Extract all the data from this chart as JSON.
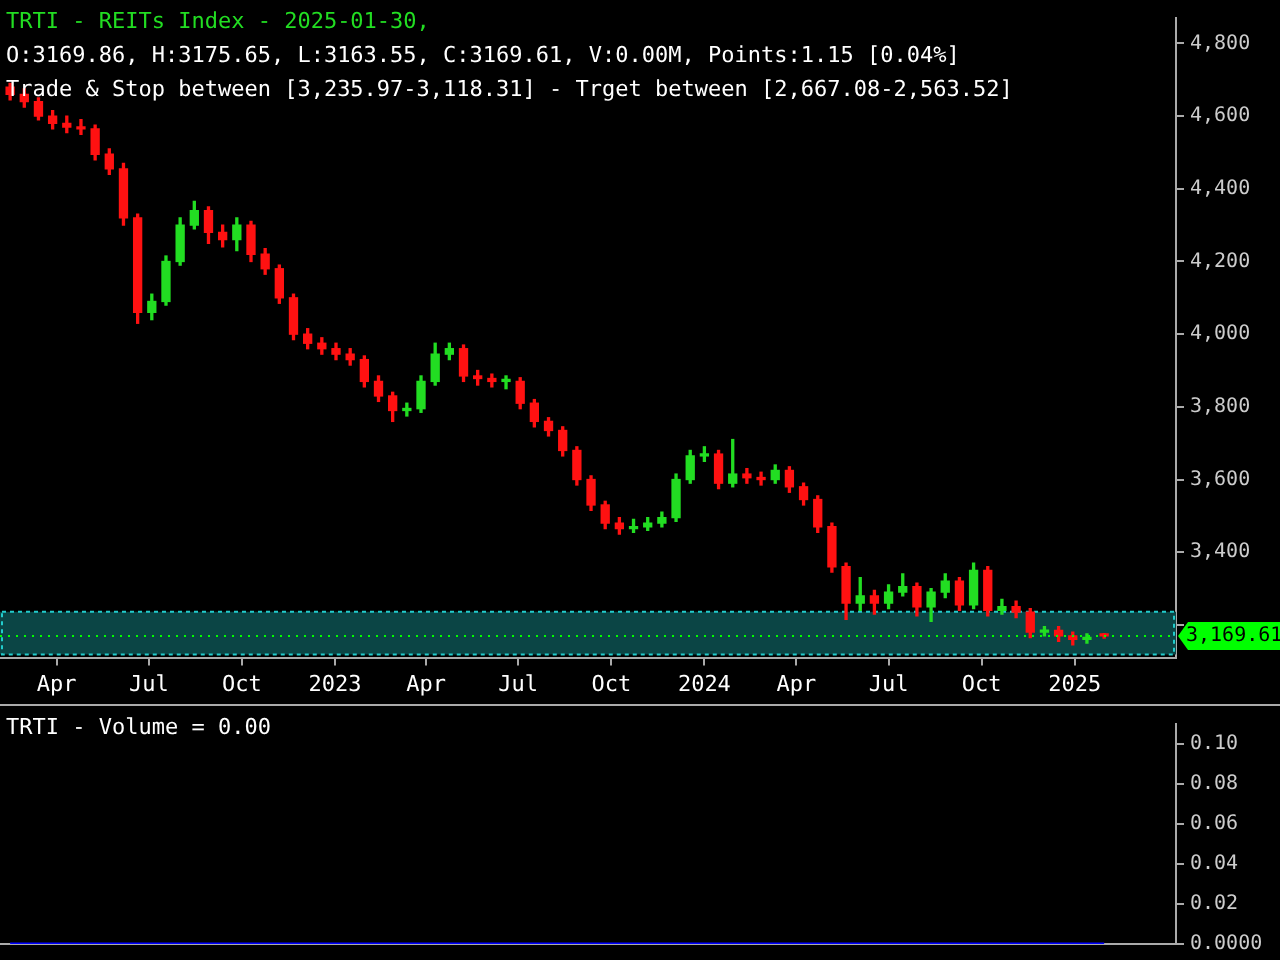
{
  "chart_data": [
    {
      "type": "candlestick",
      "title": "TRTI - REITs Index - 2025-01-30,",
      "subtitle": "O:3169.86, H:3175.65, L:3163.55, C:3169.61, V:0.00M, Points:1.15 [0.04%]",
      "annotations": [
        "Trade & Stop between [3,235.97-3,118.31] - Trget between [2,667.08-2,563.52]"
      ],
      "x": [
        "2022-02-14",
        "2022-02-28",
        "2022-03-14",
        "2022-03-28",
        "2022-04-11",
        "2022-04-25",
        "2022-05-09",
        "2022-05-23",
        "2022-06-06",
        "2022-06-20",
        "2022-07-04",
        "2022-07-18",
        "2022-08-01",
        "2022-08-15",
        "2022-08-29",
        "2022-09-12",
        "2022-09-26",
        "2022-10-10",
        "2022-10-24",
        "2022-11-07",
        "2022-11-21",
        "2022-12-05",
        "2022-12-19",
        "2023-01-02",
        "2023-01-16",
        "2023-01-30",
        "2023-02-13",
        "2023-02-27",
        "2023-03-13",
        "2023-03-27",
        "2023-04-10",
        "2023-04-24",
        "2023-05-08",
        "2023-05-22",
        "2023-06-05",
        "2023-06-19",
        "2023-07-03",
        "2023-07-17",
        "2023-07-31",
        "2023-08-14",
        "2023-08-28",
        "2023-09-11",
        "2023-09-25",
        "2023-10-09",
        "2023-10-23",
        "2023-11-06",
        "2023-11-20",
        "2023-12-04",
        "2023-12-18",
        "2024-01-01",
        "2024-01-15",
        "2024-01-29",
        "2024-02-12",
        "2024-02-26",
        "2024-03-11",
        "2024-03-25",
        "2024-04-08",
        "2024-04-22",
        "2024-05-06",
        "2024-05-20",
        "2024-06-03",
        "2024-06-17",
        "2024-07-01",
        "2024-07-15",
        "2024-07-29",
        "2024-08-12",
        "2024-08-26",
        "2024-09-09",
        "2024-09-23",
        "2024-10-07",
        "2024-10-21",
        "2024-11-04",
        "2024-11-18",
        "2024-12-02",
        "2024-12-16",
        "2024-12-30",
        "2025-01-13",
        "2025-01-30"
      ],
      "ohlc": [
        [
          4680,
          4690,
          4645,
          4660
        ],
        [
          4660,
          4675,
          4625,
          4640
        ],
        [
          4640,
          4650,
          4590,
          4600
        ],
        [
          4600,
          4615,
          4565,
          4580
        ],
        [
          4580,
          4600,
          4555,
          4570
        ],
        [
          4570,
          4590,
          4550,
          4565
        ],
        [
          4565,
          4575,
          4480,
          4495
        ],
        [
          4495,
          4510,
          4440,
          4455
        ],
        [
          4455,
          4470,
          4300,
          4320
        ],
        [
          4320,
          4330,
          4030,
          4060
        ],
        [
          4060,
          4110,
          4040,
          4090
        ],
        [
          4090,
          4215,
          4080,
          4200
        ],
        [
          4200,
          4320,
          4190,
          4300
        ],
        [
          4300,
          4365,
          4290,
          4340
        ],
        [
          4340,
          4350,
          4250,
          4280
        ],
        [
          4280,
          4300,
          4240,
          4260
        ],
        [
          4260,
          4320,
          4230,
          4300
        ],
        [
          4300,
          4310,
          4200,
          4220
        ],
        [
          4220,
          4235,
          4165,
          4180
        ],
        [
          4180,
          4190,
          4085,
          4100
        ],
        [
          4100,
          4110,
          3985,
          4000
        ],
        [
          4000,
          4015,
          3960,
          3975
        ],
        [
          3975,
          3990,
          3945,
          3960
        ],
        [
          3960,
          3975,
          3930,
          3945
        ],
        [
          3945,
          3960,
          3915,
          3930
        ],
        [
          3930,
          3940,
          3855,
          3870
        ],
        [
          3870,
          3885,
          3815,
          3830
        ],
        [
          3830,
          3840,
          3760,
          3790
        ],
        [
          3790,
          3810,
          3775,
          3795
        ],
        [
          3795,
          3885,
          3785,
          3870
        ],
        [
          3870,
          3975,
          3860,
          3945
        ],
        [
          3945,
          3975,
          3930,
          3960
        ],
        [
          3960,
          3970,
          3870,
          3885
        ],
        [
          3885,
          3900,
          3860,
          3878
        ],
        [
          3878,
          3890,
          3855,
          3870
        ],
        [
          3870,
          3885,
          3850,
          3870
        ],
        [
          3870,
          3880,
          3795,
          3810
        ],
        [
          3810,
          3820,
          3745,
          3760
        ],
        [
          3760,
          3770,
          3720,
          3735
        ],
        [
          3735,
          3745,
          3665,
          3680
        ],
        [
          3680,
          3690,
          3585,
          3600
        ],
        [
          3600,
          3610,
          3515,
          3530
        ],
        [
          3530,
          3540,
          3465,
          3480
        ],
        [
          3480,
          3495,
          3450,
          3465
        ],
        [
          3465,
          3490,
          3455,
          3470
        ],
        [
          3470,
          3495,
          3460,
          3480
        ],
        [
          3480,
          3510,
          3470,
          3495
        ],
        [
          3495,
          3615,
          3485,
          3600
        ],
        [
          3600,
          3680,
          3590,
          3665
        ],
        [
          3665,
          3690,
          3650,
          3670
        ],
        [
          3670,
          3680,
          3575,
          3590
        ],
        [
          3590,
          3710,
          3580,
          3615
        ],
        [
          3615,
          3630,
          3590,
          3605
        ],
        [
          3605,
          3620,
          3585,
          3600
        ],
        [
          3600,
          3640,
          3590,
          3625
        ],
        [
          3625,
          3635,
          3565,
          3580
        ],
        [
          3580,
          3590,
          3530,
          3545
        ],
        [
          3545,
          3555,
          3455,
          3470
        ],
        [
          3470,
          3480,
          3345,
          3360
        ],
        [
          3360,
          3370,
          3215,
          3260
        ],
        [
          3260,
          3330,
          3240,
          3280
        ],
        [
          3280,
          3295,
          3230,
          3260
        ],
        [
          3260,
          3310,
          3245,
          3290
        ],
        [
          3290,
          3340,
          3280,
          3305
        ],
        [
          3305,
          3315,
          3225,
          3250
        ],
        [
          3250,
          3300,
          3210,
          3290
        ],
        [
          3290,
          3340,
          3275,
          3320
        ],
        [
          3320,
          3330,
          3240,
          3255
        ],
        [
          3255,
          3370,
          3245,
          3350
        ],
        [
          3350,
          3360,
          3225,
          3240
        ],
        [
          3240,
          3270,
          3230,
          3250
        ],
        [
          3250,
          3265,
          3220,
          3235
        ],
        [
          3235,
          3245,
          3165,
          3180
        ],
        [
          3180,
          3195,
          3170,
          3185
        ],
        [
          3185,
          3195,
          3155,
          3170
        ],
        [
          3170,
          3180,
          3145,
          3160
        ],
        [
          3160,
          3175,
          3150,
          3165
        ],
        [
          3169.86,
          3175.65,
          3163.55,
          3169.61
        ]
      ],
      "xlim": [
        "2022-02-04",
        "2025-04-11"
      ],
      "xticks": [
        {
          "value": "2022-04-01",
          "label": "Apr"
        },
        {
          "value": "2022-07-01",
          "label": "Jul"
        },
        {
          "value": "2022-10-01",
          "label": "Oct"
        },
        {
          "value": "2023-01-01",
          "label": "2023"
        },
        {
          "value": "2023-04-01",
          "label": "Apr"
        },
        {
          "value": "2023-07-01",
          "label": "Jul"
        },
        {
          "value": "2023-10-01",
          "label": "Oct"
        },
        {
          "value": "2024-01-01",
          "label": "2024"
        },
        {
          "value": "2024-04-01",
          "label": "Apr"
        },
        {
          "value": "2024-07-01",
          "label": "Jul"
        },
        {
          "value": "2024-10-01",
          "label": "Oct"
        },
        {
          "value": "2025-01-01",
          "label": "2025"
        }
      ],
      "ylim": [
        3110,
        4870
      ],
      "yticks": [
        {
          "value": 3200,
          "label": null
        },
        {
          "value": 3400,
          "label": "3,400"
        },
        {
          "value": 3600,
          "label": "3,600"
        },
        {
          "value": 3800,
          "label": "3,800"
        },
        {
          "value": 4000,
          "label": "4,000"
        },
        {
          "value": 4200,
          "label": "4,200"
        },
        {
          "value": 4400,
          "label": "4,400"
        },
        {
          "value": 4600,
          "label": "4,600"
        },
        {
          "value": 4800,
          "label": "4,800"
        }
      ],
      "bands": [
        {
          "axis": "y",
          "from": 3118.31,
          "to": 3235.97,
          "color": "#0b4545"
        }
      ],
      "ref_lines": [
        {
          "axis": "y",
          "value": 3169.61,
          "label": "3,169.61",
          "color": "#00ff00",
          "line_style": "dotted"
        }
      ]
    },
    {
      "type": "line",
      "title": "TRTI - Volume = 0.00",
      "x": [
        "2022-02-14",
        "2025-01-30"
      ],
      "series": [
        {
          "color": "#0000ff",
          "values": [
            0,
            0
          ]
        }
      ],
      "xlim": [
        "2022-02-04",
        "2025-04-11"
      ],
      "ylim": [
        0,
        0.11
      ],
      "yticks": [
        {
          "value": 0,
          "label": "0.0000"
        },
        {
          "value": 0.02,
          "label": "0.02"
        },
        {
          "value": 0.04,
          "label": "0.04"
        },
        {
          "value": 0.06,
          "label": "0.06"
        },
        {
          "value": 0.08,
          "label": "0.08"
        },
        {
          "value": 0.1,
          "label": "0.10"
        }
      ],
      "tick_labels": "y"
    }
  ]
}
